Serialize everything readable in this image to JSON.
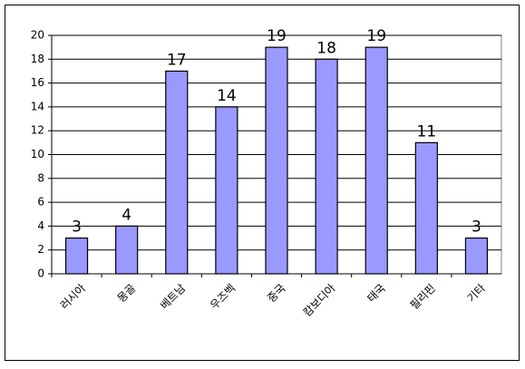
{
  "chart_data": {
    "type": "bar",
    "categories": [
      "러시아",
      "몽골",
      "베트남",
      "우즈벡",
      "중국",
      "캄보디아",
      "태국",
      "필리핀",
      "기타"
    ],
    "values": [
      3,
      4,
      17,
      14,
      19,
      18,
      19,
      11,
      3
    ],
    "color": "#9999ff",
    "ylim": [
      0,
      20
    ],
    "yticks": [
      0,
      2,
      4,
      6,
      8,
      10,
      12,
      14,
      16,
      18,
      20
    ],
    "grid": true
  }
}
